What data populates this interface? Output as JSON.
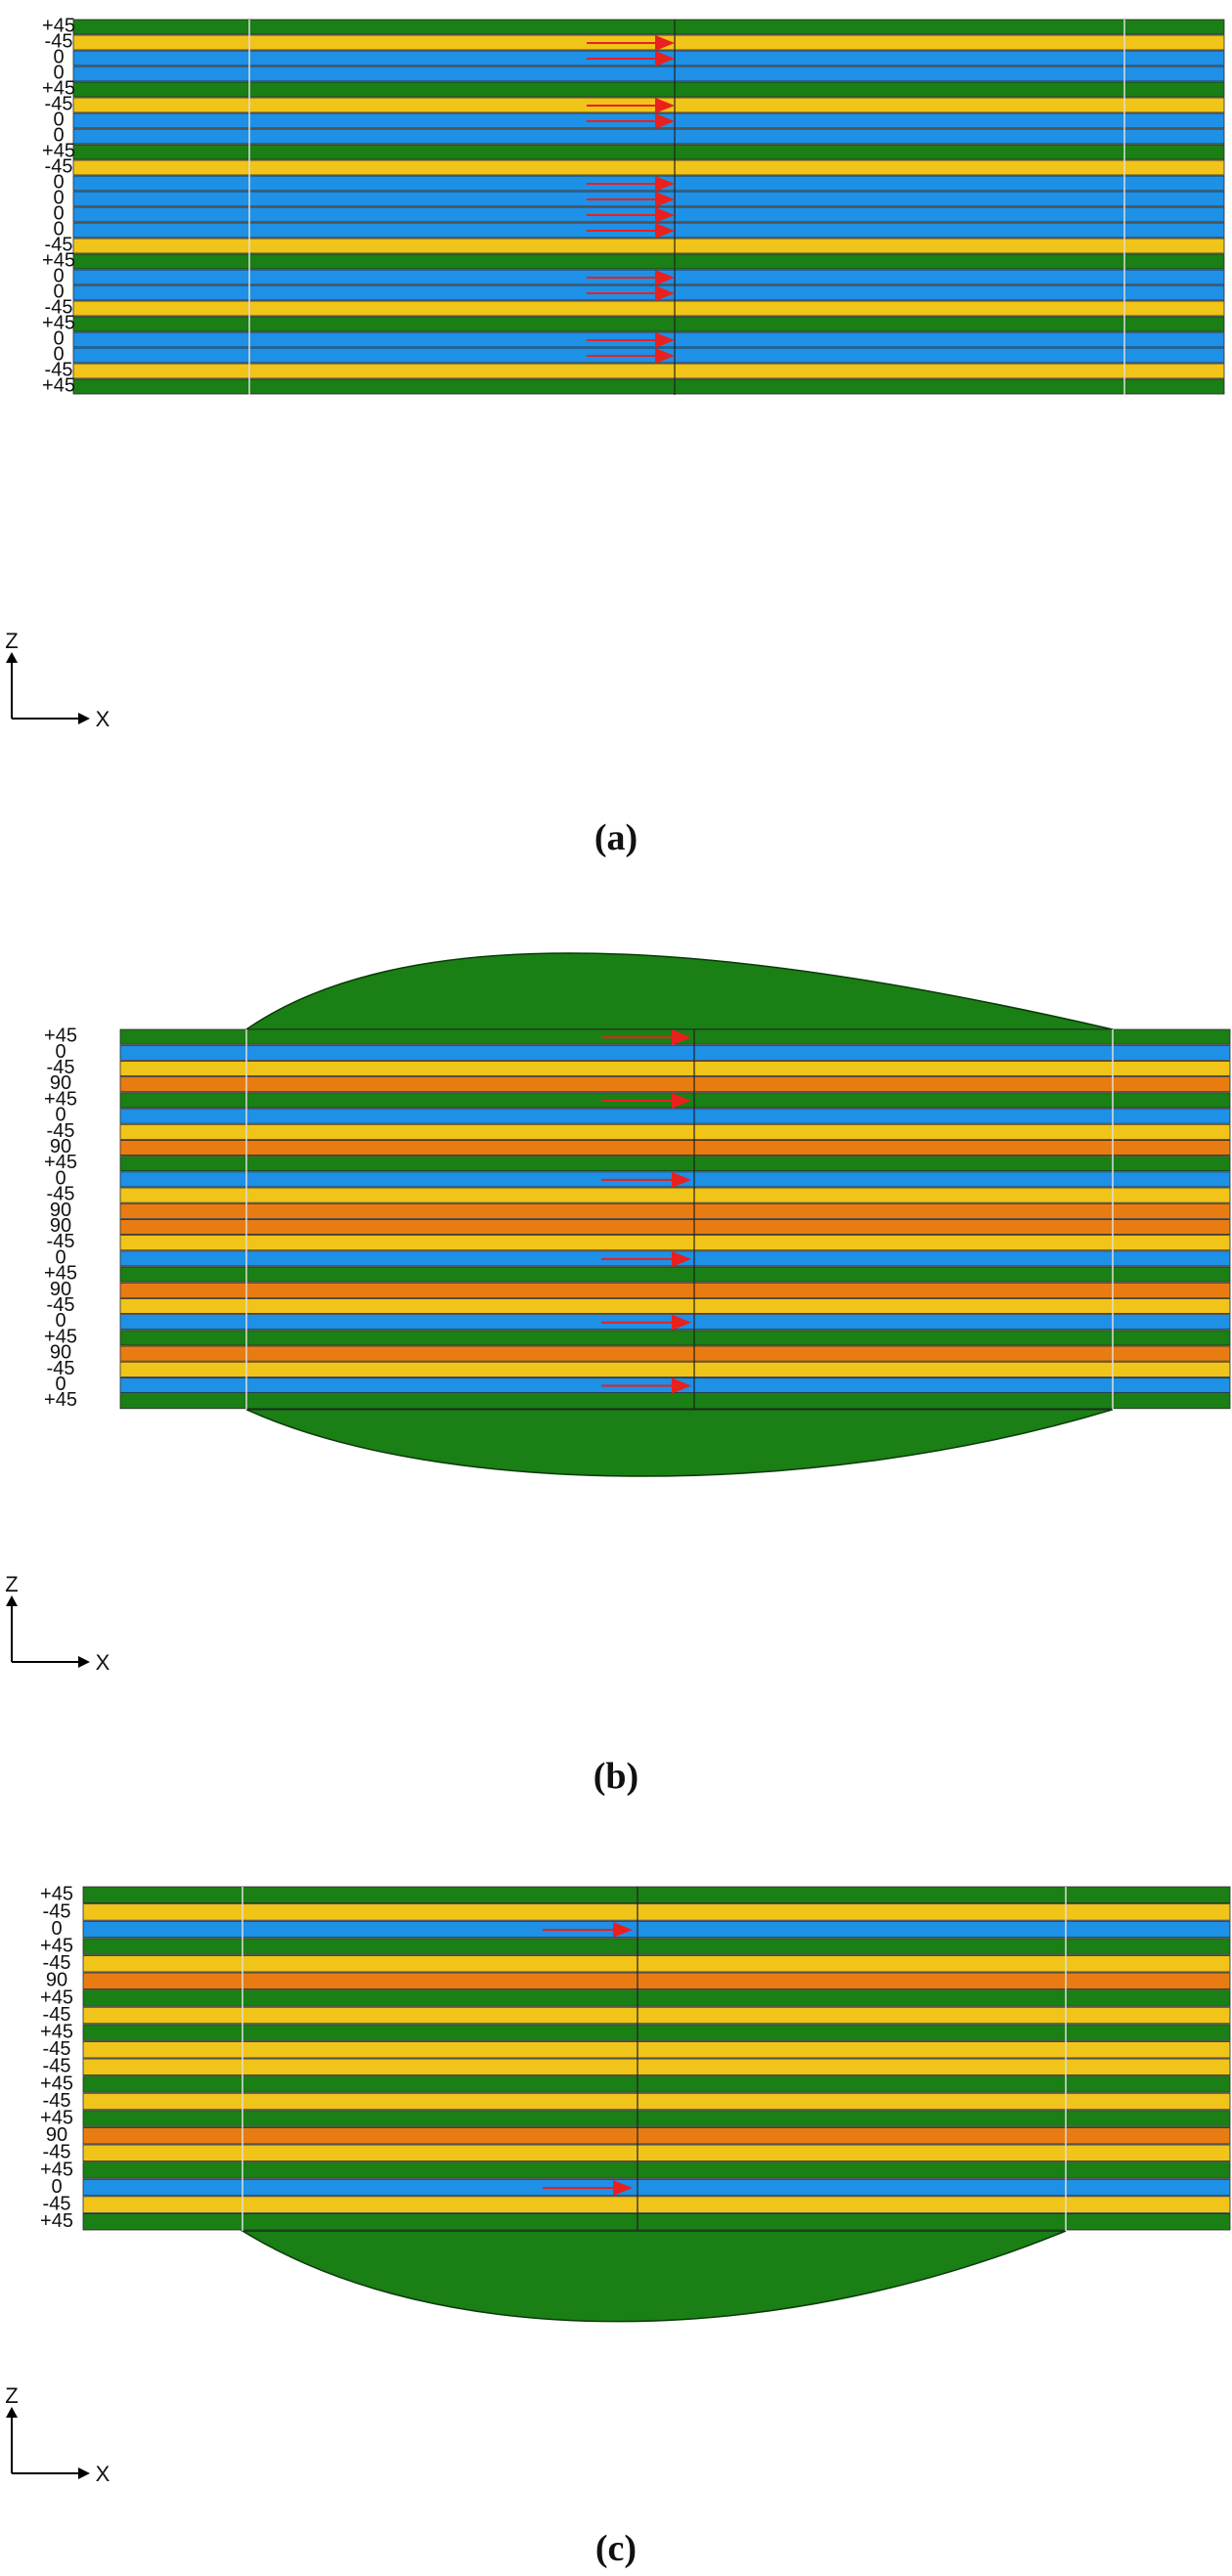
{
  "colors": {
    "plus45": "#1a7f14",
    "minus45": "#f0c418",
    "zero": "#1e90e6",
    "ninety": "#e87c12",
    "arrow": "#e8211e",
    "outline": "#0b3a0b"
  },
  "panels": [
    {
      "caption": "(a)",
      "plies": [
        "+45",
        "-45",
        "0",
        "0",
        "+45",
        "-45",
        "0",
        "0",
        "+45",
        "-45",
        "0",
        "0",
        "0",
        "0",
        "-45",
        "+45",
        "0",
        "0",
        "-45",
        "+45",
        "0",
        "0",
        "-45",
        "+45"
      ],
      "arrow_plies": [
        1,
        2,
        5,
        6,
        10,
        11,
        12,
        13,
        16,
        17,
        20,
        21
      ],
      "axis": {
        "z": "Z",
        "x": "X"
      }
    },
    {
      "caption": "(b)",
      "plies": [
        "+45",
        "0",
        "-45",
        "90",
        "+45",
        "0",
        "-45",
        "90",
        "+45",
        "0",
        "-45",
        "90",
        "90",
        "-45",
        "0",
        "+45",
        "90",
        "-45",
        "0",
        "+45",
        "90",
        "-45",
        "0",
        "+45"
      ],
      "arrow_plies": [
        0,
        4,
        9,
        14,
        18,
        22
      ],
      "axis": {
        "z": "Z",
        "x": "X"
      }
    },
    {
      "caption": "(c)",
      "plies": [
        "+45",
        "-45",
        "0",
        "+45",
        "-45",
        "90",
        "+45",
        "-45",
        "+45",
        "-45",
        "-45",
        "+45",
        "-45",
        "+45",
        "90",
        "-45",
        "+45",
        "0",
        "-45",
        "+45"
      ],
      "arrow_plies": [
        2,
        17
      ],
      "axis": {
        "z": "Z",
        "x": "X"
      }
    }
  ]
}
